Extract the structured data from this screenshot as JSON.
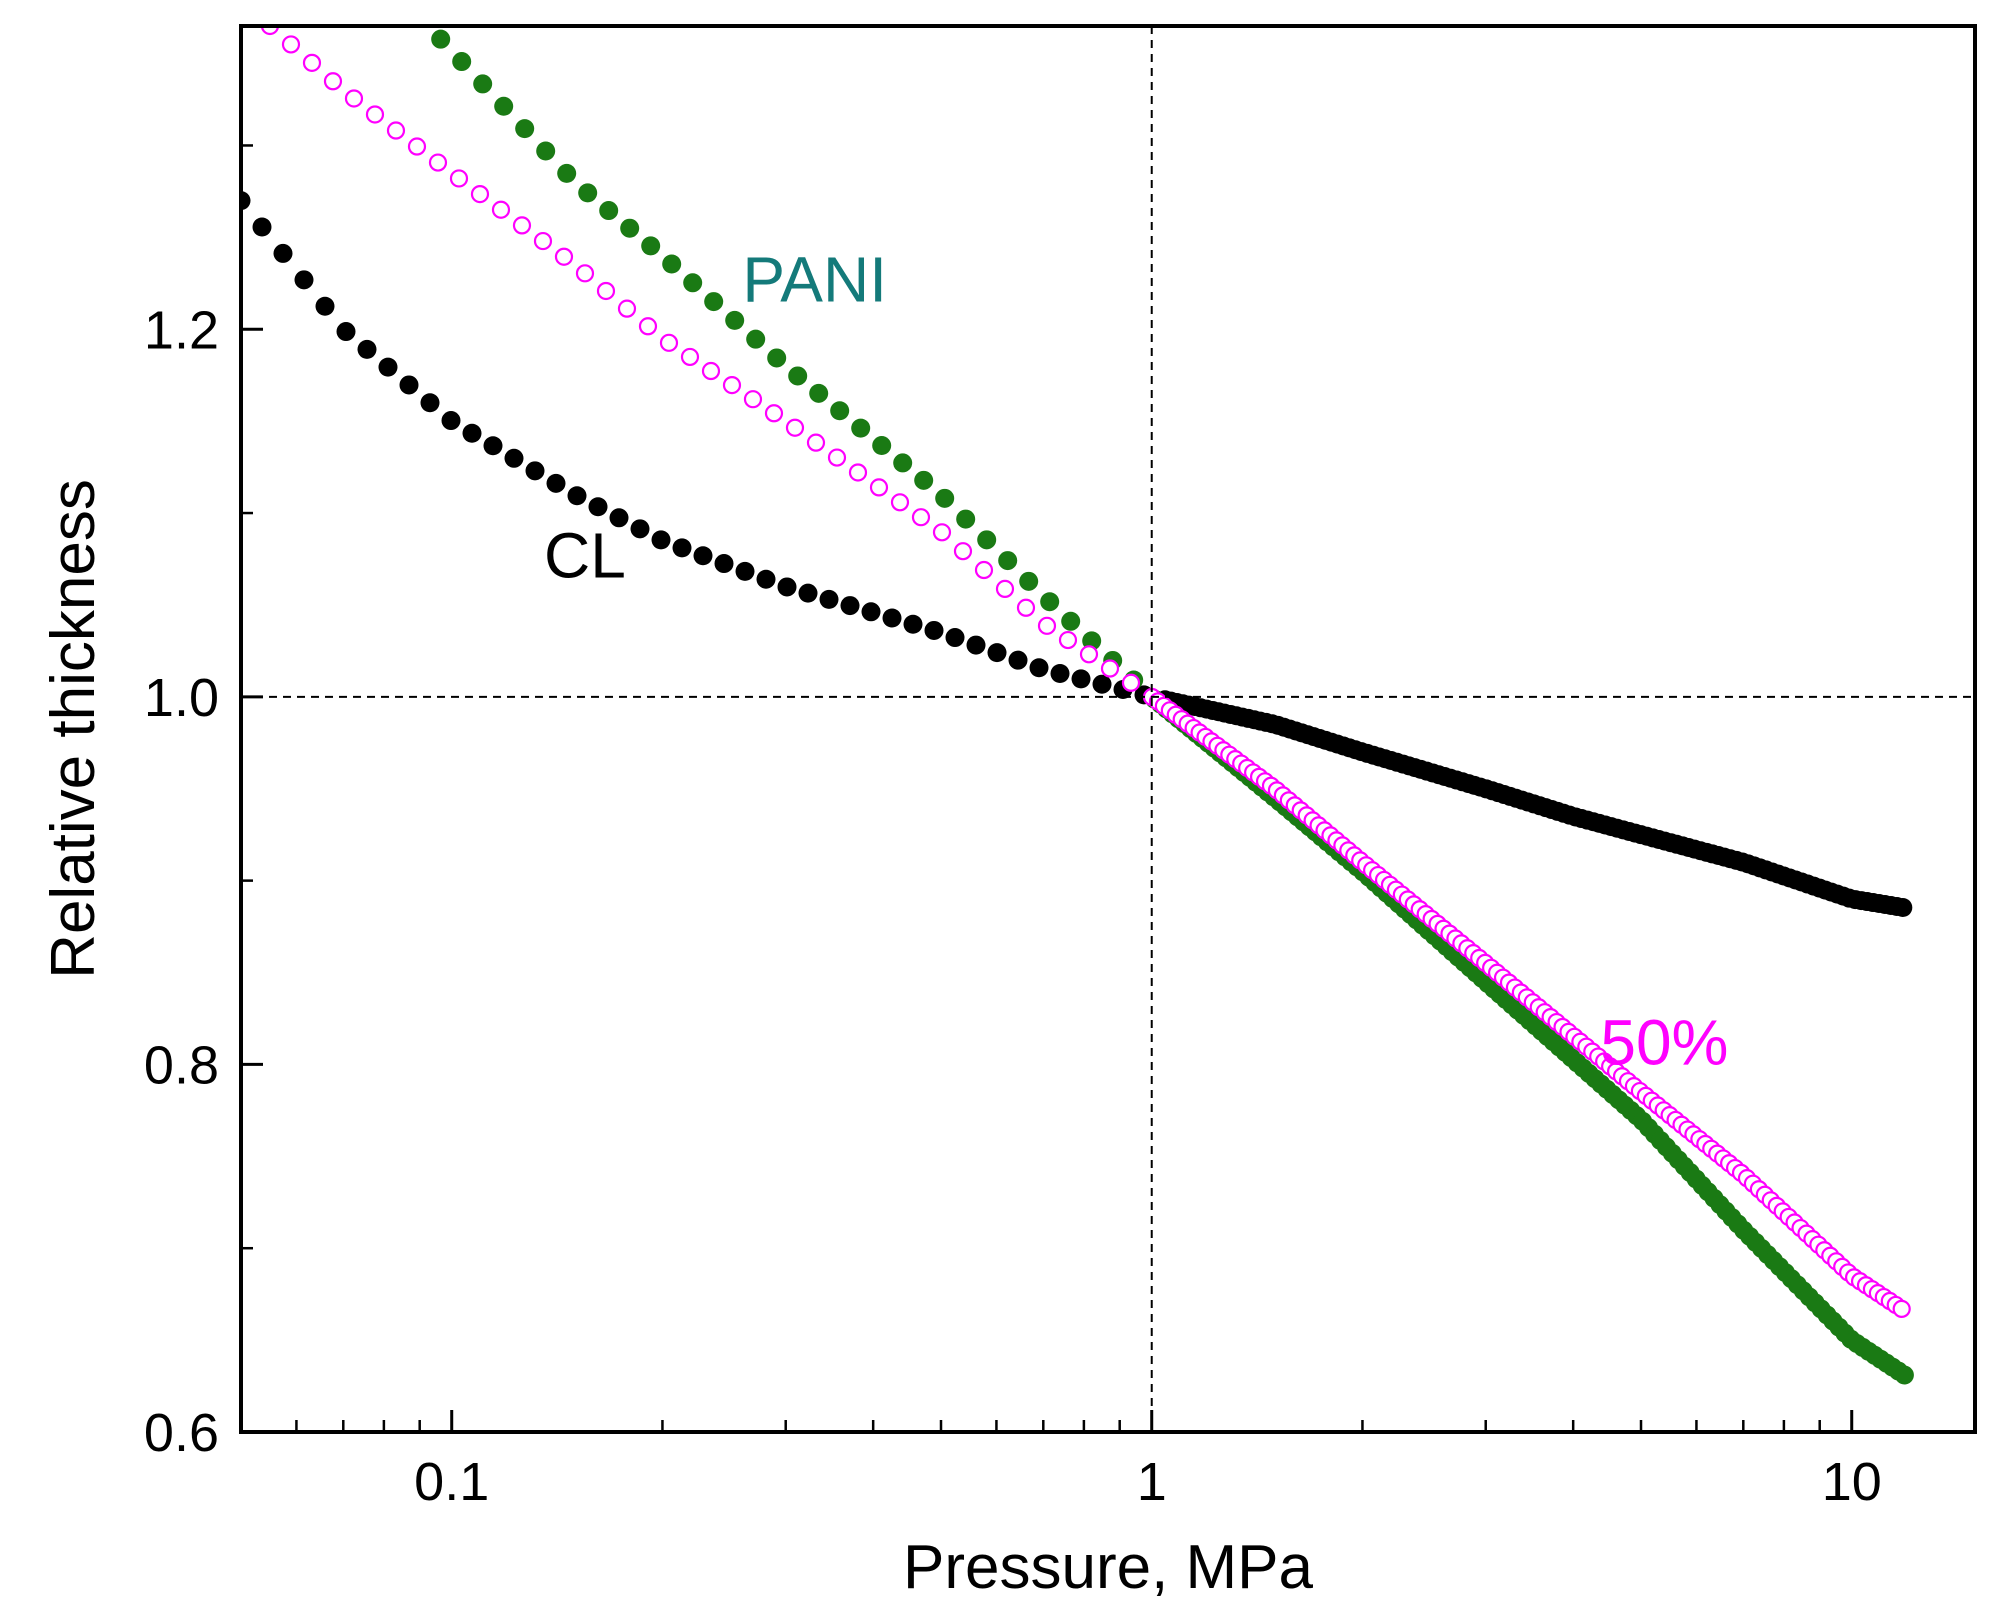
{
  "chart_data": {
    "type": "scatter",
    "title": "",
    "xlabel": "Pressure, MPa",
    "ylabel": "Relative thickness",
    "xscale": "log",
    "xlim": [
      0.05,
      15
    ],
    "ylim": [
      0.6,
      1.365
    ],
    "x_ticks": [
      {
        "value": 0.1,
        "label": "0.1"
      },
      {
        "value": 1,
        "label": "1"
      },
      {
        "value": 10,
        "label": "10"
      }
    ],
    "y_ticks": [
      {
        "value": 0.6,
        "label": "0.6"
      },
      {
        "value": 0.8,
        "label": "0.8"
      },
      {
        "value": 1.0,
        "label": "1.0"
      },
      {
        "value": 1.2,
        "label": "1.2"
      }
    ],
    "reference_lines": {
      "x": 1,
      "y": 1.0
    },
    "grid": false,
    "legend": "inline labels",
    "series": [
      {
        "name": "CL",
        "color": "#000000",
        "marker": "filled-circle",
        "points": [
          [
            0.05,
            1.27
          ],
          [
            0.07,
            1.2
          ],
          [
            0.1,
            1.15
          ],
          [
            0.15,
            1.11
          ],
          [
            0.2,
            1.085
          ],
          [
            0.3,
            1.06
          ],
          [
            0.5,
            1.035
          ],
          [
            0.7,
            1.015
          ],
          [
            1.0,
            1.0
          ],
          [
            1.5,
            0.985
          ],
          [
            2.0,
            0.97
          ],
          [
            3.0,
            0.95
          ],
          [
            4.0,
            0.935
          ],
          [
            5.0,
            0.925
          ],
          [
            7.0,
            0.91
          ],
          [
            10.0,
            0.89
          ],
          [
            12.0,
            0.885
          ]
        ]
      },
      {
        "name": "PANI",
        "color": "#1a7a14",
        "marker": "filled-circle",
        "points": [
          [
            0.09,
            1.37
          ],
          [
            0.15,
            1.28
          ],
          [
            0.2,
            1.24
          ],
          [
            0.3,
            1.18
          ],
          [
            0.5,
            1.11
          ],
          [
            0.7,
            1.055
          ],
          [
            1.0,
            1.0
          ],
          [
            1.5,
            0.945
          ],
          [
            2.0,
            0.905
          ],
          [
            3.0,
            0.845
          ],
          [
            5.0,
            0.77
          ],
          [
            7.0,
            0.71
          ],
          [
            10.0,
            0.65
          ],
          [
            12.0,
            0.63
          ]
        ]
      },
      {
        "name": "50%",
        "color": "#ff00ff",
        "marker": "open-circle",
        "points": [
          [
            0.055,
            1.365
          ],
          [
            0.07,
            1.33
          ],
          [
            0.1,
            1.285
          ],
          [
            0.15,
            1.235
          ],
          [
            0.2,
            1.195
          ],
          [
            0.3,
            1.15
          ],
          [
            0.5,
            1.09
          ],
          [
            0.7,
            1.04
          ],
          [
            1.0,
            1.0
          ],
          [
            1.5,
            0.95
          ],
          [
            2.0,
            0.91
          ],
          [
            3.0,
            0.855
          ],
          [
            5.0,
            0.785
          ],
          [
            7.0,
            0.74
          ],
          [
            10.0,
            0.685
          ],
          [
            12.0,
            0.665
          ]
        ]
      }
    ],
    "annotations": [
      {
        "text": "PANI",
        "color": "#147a7a",
        "x": 0.33,
        "y": 1.215
      },
      {
        "text": "CL",
        "color": "#000000",
        "x": 0.155,
        "y": 1.065
      },
      {
        "text": "50%",
        "color": "#ff00ff",
        "x": 5.4,
        "y": 0.8
      }
    ]
  }
}
